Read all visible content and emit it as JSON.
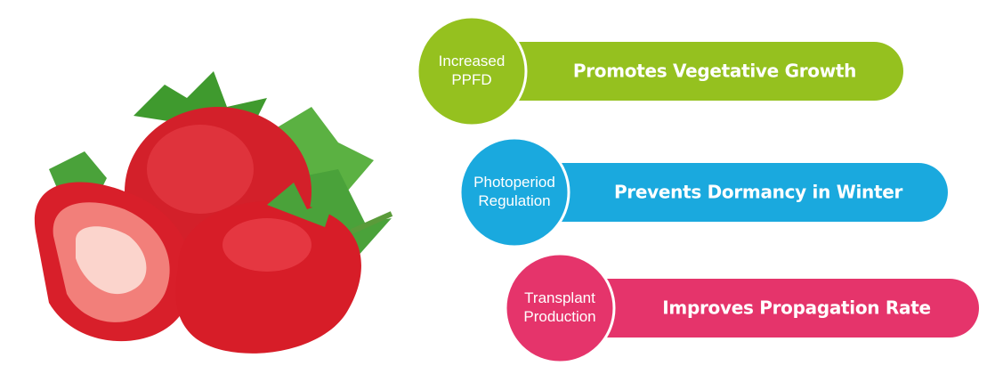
{
  "items": [
    {
      "circle_label": [
        "Increased",
        "PPFD"
      ],
      "text": "Promotes Vegetative Growth",
      "color": "#95c11f"
    },
    {
      "circle_label": [
        "Photoperiod",
        "Regulation"
      ],
      "text": "Prevents Dormancy in Winter",
      "color": "#1aa9de"
    },
    {
      "circle_label": [
        "Transplant",
        "Production"
      ],
      "text": "Improves Propagation Rate",
      "color": "#e5346b"
    }
  ]
}
